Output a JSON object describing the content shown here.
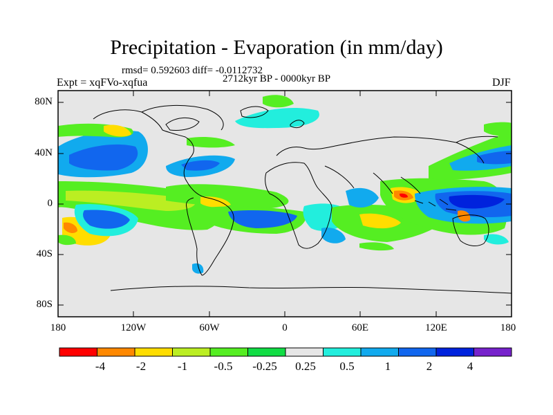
{
  "title": "Precipitation - Evaporation (in mm/day)",
  "stats": "rmsd= 0.592603 diff= -0.0112732",
  "period": "2712kyr BP - 0000kyr BP",
  "experiment": "Expt = xqFVo-xqfua",
  "season": "DJF",
  "axes": {
    "x_ticks": [
      "180",
      "120W",
      "60W",
      "0",
      "60E",
      "120E",
      "180"
    ],
    "y_ticks": [
      "80N",
      "40N",
      "0",
      "40S",
      "80S"
    ]
  },
  "colorbar": {
    "labels": [
      "-4",
      "-2",
      "-1",
      "-0.5",
      "-0.25",
      "0.25",
      "0.5",
      "1",
      "2",
      "4"
    ],
    "colors": [
      "#ff0000",
      "#ff8800",
      "#ffdd00",
      "#bbee22",
      "#55ee22",
      "#11dd44",
      "#e6e6e6",
      "#22eedd",
      "#11aaee",
      "#1166ee",
      "#0022dd",
      "#7722cc"
    ]
  },
  "colors": {
    "background": "#e6e6e6",
    "coast": "#000000"
  }
}
